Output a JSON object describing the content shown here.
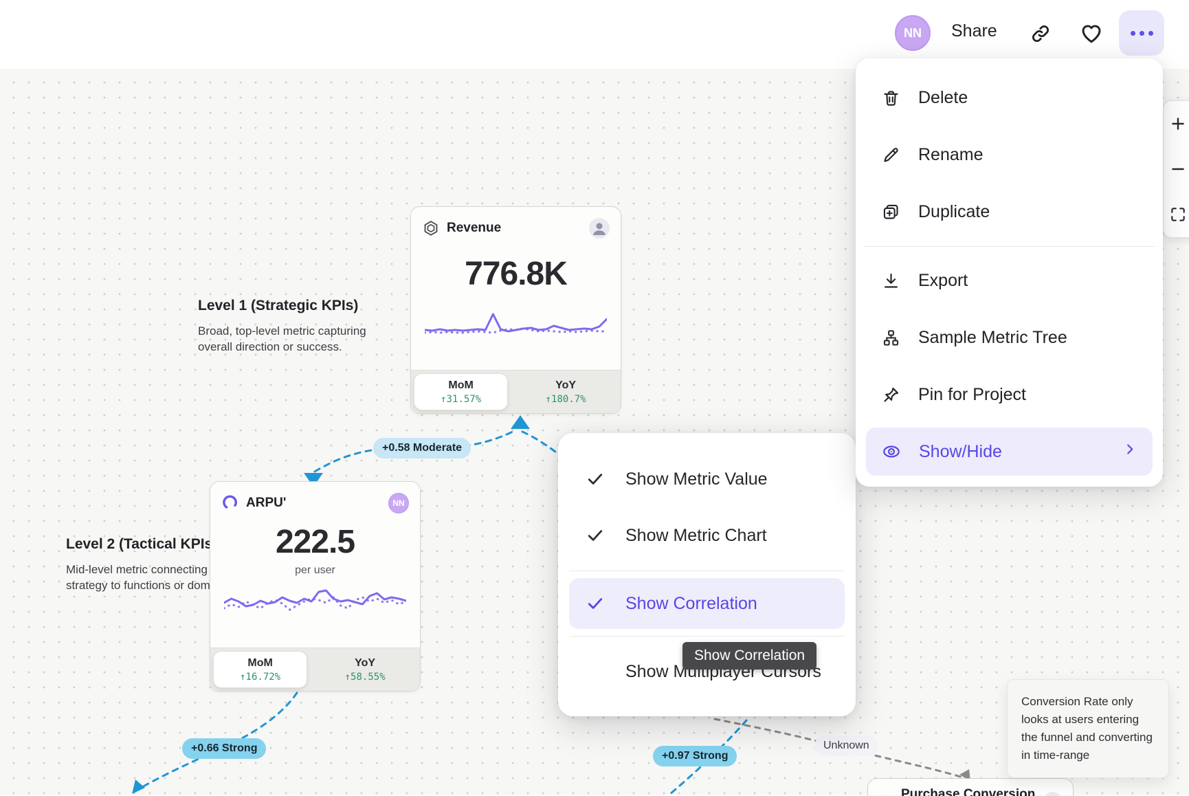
{
  "topbar": {
    "avatar": "NN",
    "share": "Share"
  },
  "menu": {
    "items": [
      {
        "label": "Delete"
      },
      {
        "label": "Rename"
      },
      {
        "label": "Duplicate"
      },
      {
        "label": "Export"
      },
      {
        "label": "Sample Metric Tree"
      },
      {
        "label": "Pin for Project"
      },
      {
        "label": "Show/Hide"
      }
    ]
  },
  "submenu": {
    "items": [
      {
        "label": "Show Metric Value",
        "checked": true
      },
      {
        "label": "Show Metric Chart",
        "checked": true
      },
      {
        "label": "Show Correlation",
        "checked": true,
        "active": true
      },
      {
        "label": "Show Multiplayer Cursors",
        "checked": false
      }
    ],
    "tooltip": "Show Correlation"
  },
  "cards": {
    "revenue": {
      "title": "Revenue",
      "value": "776.8K",
      "tabs": {
        "mom_label": "MoM",
        "mom_value": "↑31.57%",
        "yoy_label": "YoY",
        "yoy_value": "↑180.7%"
      },
      "sparkline": {
        "solid": [
          36,
          37,
          35,
          37,
          36,
          37,
          36,
          35,
          36,
          13,
          35,
          38,
          36,
          34,
          33,
          36,
          35,
          30,
          33,
          36,
          35,
          34,
          35,
          31,
          20
        ],
        "dotted": [
          40,
          39,
          40,
          39,
          40,
          40,
          39,
          38,
          39,
          40,
          37,
          35,
          36,
          34,
          36,
          38,
          37,
          38,
          39,
          38,
          39,
          38,
          37,
          38,
          38
        ]
      }
    },
    "arpu": {
      "title": "ARPU'",
      "value": "222.5",
      "unit": "per user",
      "avatar": "NN",
      "tabs": {
        "mom_label": "MoM",
        "mom_value": "↑16.72%",
        "yoy_label": "YoY",
        "yoy_value": "↑58.55%"
      },
      "sparkline": {
        "solid": [
          30,
          24,
          28,
          35,
          33,
          27,
          31,
          29,
          22,
          27,
          30,
          24,
          28,
          14,
          12,
          24,
          28,
          26,
          29,
          32,
          20,
          16,
          25,
          22,
          24,
          27
        ],
        "dotted": [
          38,
          32,
          36,
          28,
          33,
          38,
          30,
          26,
          31,
          40,
          34,
          28,
          24,
          26,
          30,
          22,
          34,
          38,
          26,
          22,
          28,
          24,
          30,
          26,
          32,
          28
        ]
      }
    },
    "purchase": {
      "title": "Purchase Conversion R"
    }
  },
  "levels": {
    "level1": {
      "title": "Level 1 (Strategic KPIs)",
      "desc": "Broad, top-level metric capturing overall direction or success."
    },
    "level2": {
      "title": "Level 2 (Tactical KPIs",
      "desc": "Mid-level metric connecting strategy to functions or doma"
    }
  },
  "correlations": {
    "moderate": "+0.58 Moderate",
    "strong1": "+0.66 Strong",
    "strong2": "+0.97 Strong",
    "unknown": "Unknown"
  },
  "note": {
    "text": "Conversion Rate only looks at users entering the funnel and converting in time-range"
  },
  "colors": {
    "accent": "#5847E6",
    "spark_purple": "#7C6BEF",
    "positive_green": "#2A9467",
    "correlation_line_blue": "#1F96D4",
    "correlation_strong_bg": "#85D2EE",
    "correlation_moderate_bg": "#C7E6F6",
    "menu_highlight_bg": "#EDEBFC",
    "cursor_tooltip_bg": "#48484A"
  }
}
